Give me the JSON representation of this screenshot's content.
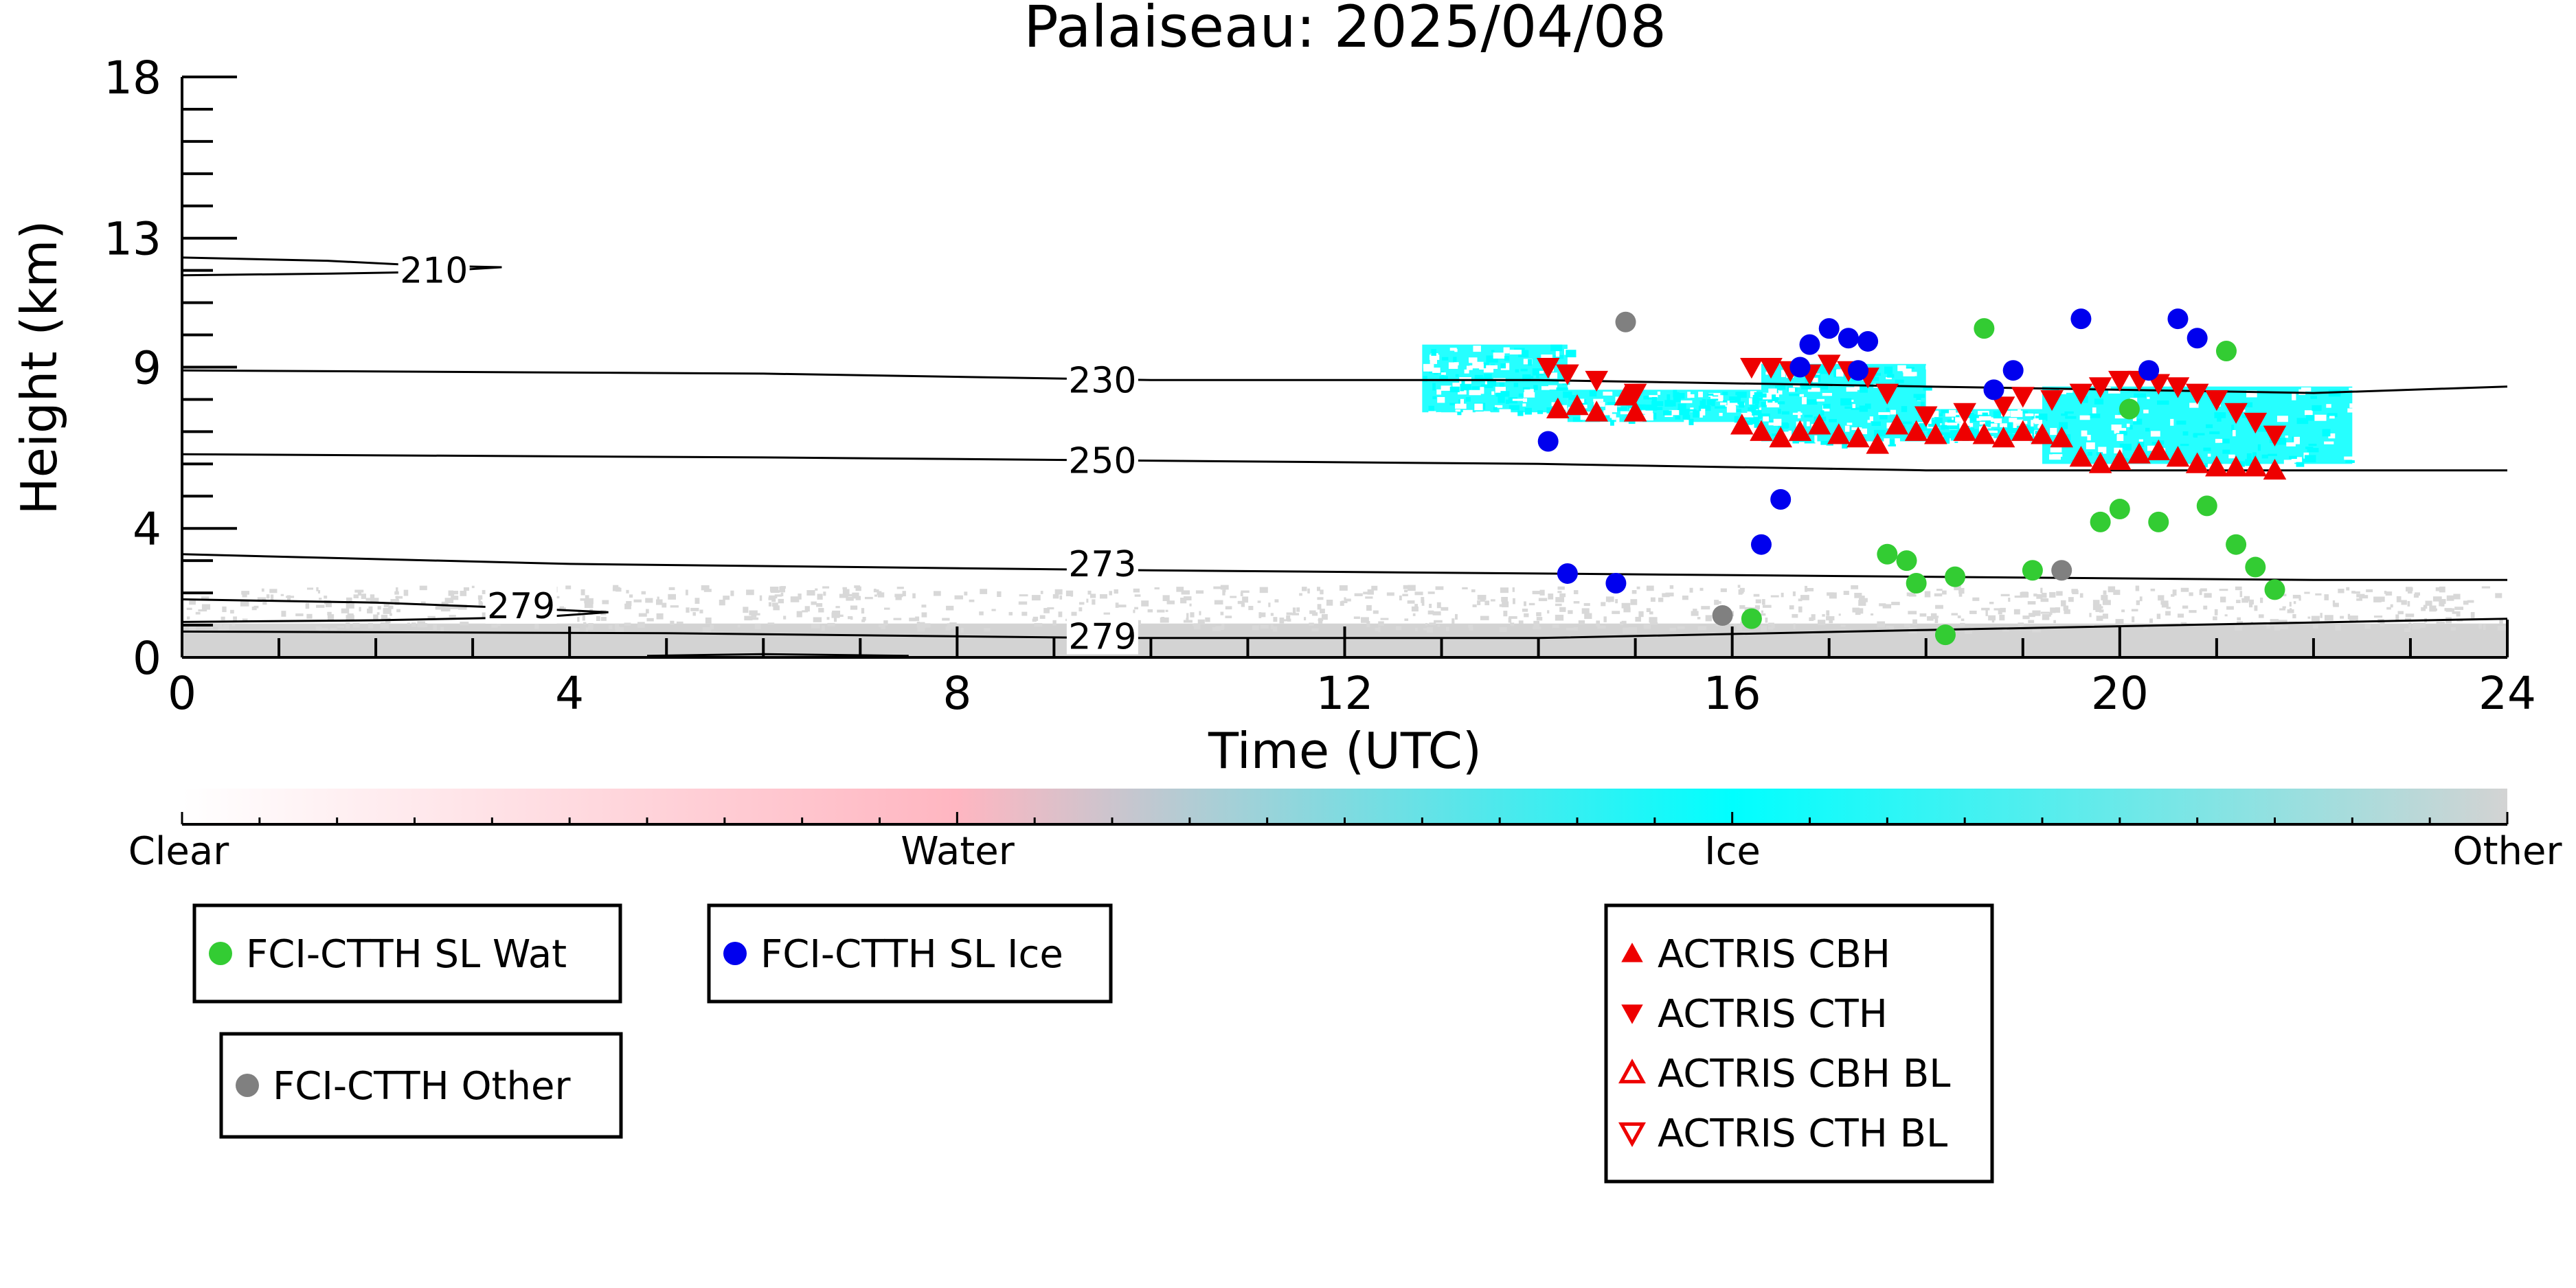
{
  "chart_data": {
    "type": "scatter",
    "title": "Palaiseau: 2025/04/08",
    "xlabel": "Time (UTC)",
    "ylabel": "Height (km)",
    "xlim": [
      0,
      24
    ],
    "ylim": [
      0,
      18
    ],
    "x_ticks": [
      "0",
      "4",
      "8",
      "12",
      "16",
      "20",
      "24"
    ],
    "y_ticks": [
      "0",
      "4",
      "9",
      "13",
      "18"
    ],
    "contours": [
      {
        "label": "210",
        "points": [
          [
            0,
            12.4
          ],
          [
            1.5,
            12.3
          ],
          [
            2.5,
            12.15
          ],
          [
            3.3,
            12.1
          ],
          [
            2.5,
            11.95
          ],
          [
            1.5,
            11.9
          ],
          [
            0,
            11.85
          ]
        ],
        "label_at": [
          2.6,
          12.0
        ]
      },
      {
        "label": "230",
        "points": [
          [
            0,
            8.9
          ],
          [
            6,
            8.8
          ],
          [
            10,
            8.6
          ],
          [
            14,
            8.6
          ],
          [
            18,
            8.4
          ],
          [
            22,
            8.2
          ],
          [
            24,
            8.4
          ]
        ],
        "label_at": [
          9.5,
          8.6
        ]
      },
      {
        "label": "250",
        "points": [
          [
            0,
            6.3
          ],
          [
            6,
            6.2
          ],
          [
            10,
            6.1
          ],
          [
            14,
            6.0
          ],
          [
            18,
            5.8
          ],
          [
            22,
            5.8
          ],
          [
            24,
            5.8
          ]
        ],
        "label_at": [
          9.5,
          6.1
        ]
      },
      {
        "label": "273",
        "points": [
          [
            0,
            3.2
          ],
          [
            4,
            2.9
          ],
          [
            10,
            2.7
          ],
          [
            14,
            2.6
          ],
          [
            18,
            2.5
          ],
          [
            22,
            2.4
          ],
          [
            24,
            2.4
          ]
        ],
        "label_at": [
          9.5,
          2.9
        ]
      },
      {
        "label": "279",
        "points": [
          [
            0,
            1.8
          ],
          [
            2,
            1.7
          ],
          [
            3.7,
            1.5
          ],
          [
            4.4,
            1.4
          ],
          [
            3.7,
            1.25
          ],
          [
            2,
            1.15
          ],
          [
            0,
            1.1
          ]
        ],
        "label_at": [
          3.5,
          1.6
        ]
      },
      {
        "label": "279",
        "points": [
          [
            0,
            0.8
          ],
          [
            5,
            0.75
          ],
          [
            9.6,
            0.6
          ],
          [
            14,
            0.6
          ],
          [
            18,
            0.85
          ],
          [
            24,
            1.2
          ]
        ],
        "label_at": [
          9.5,
          0.65
        ]
      },
      {
        "label": "",
        "points": [
          [
            4.8,
            0.05
          ],
          [
            6,
            0.1
          ],
          [
            7.5,
            0.05
          ]
        ],
        "label_at": null
      }
    ],
    "background_layers": {
      "other": {
        "x": [
          0,
          24
        ],
        "y_range": [
          0,
          1.5
        ]
      },
      "ice": [
        {
          "x": [
            12.8,
            14.3
          ],
          "y": [
            7.6,
            9.7
          ]
        },
        {
          "x": [
            14.3,
            16.3
          ],
          "y": [
            7.3,
            8.3
          ]
        },
        {
          "x": [
            16.3,
            18.0
          ],
          "y": [
            6.7,
            9.1
          ]
        },
        {
          "x": [
            18.0,
            19.2
          ],
          "y": [
            6.8,
            7.7
          ]
        },
        {
          "x": [
            19.2,
            22.4
          ],
          "y": [
            6.0,
            8.4
          ]
        }
      ]
    },
    "series": [
      {
        "name": "FCI-CTTH SL Wat",
        "color": "#33cc33",
        "marker": "circle",
        "points": [
          [
            16.2,
            1.2
          ],
          [
            17.6,
            3.2
          ],
          [
            17.8,
            3.0
          ],
          [
            17.9,
            2.3
          ],
          [
            18.2,
            0.7
          ],
          [
            18.3,
            2.5
          ],
          [
            18.6,
            10.2
          ],
          [
            19.1,
            2.7
          ],
          [
            19.8,
            4.2
          ],
          [
            20.0,
            4.6
          ],
          [
            20.1,
            7.7
          ],
          [
            20.4,
            4.2
          ],
          [
            20.9,
            4.7
          ],
          [
            21.1,
            9.5
          ],
          [
            21.2,
            3.5
          ],
          [
            21.4,
            2.8
          ],
          [
            21.6,
            2.1
          ]
        ]
      },
      {
        "name": "FCI-CTTH SL Ice",
        "color": "#0000ee",
        "marker": "circle",
        "points": [
          [
            14.1,
            6.7
          ],
          [
            14.3,
            2.6
          ],
          [
            14.8,
            2.3
          ],
          [
            16.3,
            3.5
          ],
          [
            16.5,
            4.9
          ],
          [
            16.7,
            9.0
          ],
          [
            16.8,
            9.7
          ],
          [
            17.0,
            10.2
          ],
          [
            17.2,
            9.9
          ],
          [
            17.3,
            8.9
          ],
          [
            17.4,
            9.8
          ],
          [
            18.7,
            8.3
          ],
          [
            18.9,
            8.9
          ],
          [
            19.6,
            10.5
          ],
          [
            20.3,
            8.9
          ],
          [
            20.6,
            10.5
          ],
          [
            20.8,
            9.9
          ]
        ]
      },
      {
        "name": "FCI-CTTH Other",
        "color": "#808080",
        "marker": "circle",
        "points": [
          [
            14.9,
            10.4
          ],
          [
            15.9,
            1.3
          ],
          [
            19.4,
            2.7
          ]
        ]
      },
      {
        "name": "ACTRIS CBH",
        "color": "#ee0000",
        "marker": "triangle-up",
        "points": [
          [
            14.2,
            7.7
          ],
          [
            14.4,
            7.8
          ],
          [
            14.6,
            7.6
          ],
          [
            14.9,
            8.1
          ],
          [
            15.0,
            7.6
          ],
          [
            16.1,
            7.2
          ],
          [
            16.3,
            7.0
          ],
          [
            16.5,
            6.8
          ],
          [
            16.7,
            7.0
          ],
          [
            16.9,
            7.2
          ],
          [
            17.1,
            6.9
          ],
          [
            17.3,
            6.8
          ],
          [
            17.5,
            6.6
          ],
          [
            17.7,
            7.2
          ],
          [
            17.9,
            7.0
          ],
          [
            18.1,
            6.9
          ],
          [
            18.4,
            7.0
          ],
          [
            18.6,
            6.9
          ],
          [
            18.8,
            6.8
          ],
          [
            19.0,
            7.0
          ],
          [
            19.2,
            6.9
          ],
          [
            19.4,
            6.8
          ],
          [
            19.6,
            6.2
          ],
          [
            19.8,
            6.0
          ],
          [
            20.0,
            6.1
          ],
          [
            20.2,
            6.3
          ],
          [
            20.4,
            6.4
          ],
          [
            20.6,
            6.2
          ],
          [
            20.8,
            6.0
          ],
          [
            21.0,
            5.9
          ],
          [
            21.2,
            5.9
          ],
          [
            21.4,
            5.9
          ],
          [
            21.6,
            5.8
          ]
        ]
      },
      {
        "name": "ACTRIS CTH",
        "color": "#ee0000",
        "marker": "triangle-down",
        "points": [
          [
            14.1,
            9.0
          ],
          [
            14.3,
            8.8
          ],
          [
            14.6,
            8.6
          ],
          [
            15.0,
            8.2
          ],
          [
            16.2,
            9.0
          ],
          [
            16.4,
            9.0
          ],
          [
            16.6,
            8.9
          ],
          [
            16.8,
            8.8
          ],
          [
            17.0,
            9.1
          ],
          [
            17.2,
            8.9
          ],
          [
            17.4,
            8.7
          ],
          [
            17.6,
            8.2
          ],
          [
            18.0,
            7.5
          ],
          [
            18.4,
            7.6
          ],
          [
            18.8,
            7.8
          ],
          [
            19.0,
            8.1
          ],
          [
            19.3,
            8.0
          ],
          [
            19.6,
            8.2
          ],
          [
            19.8,
            8.4
          ],
          [
            20.0,
            8.6
          ],
          [
            20.2,
            8.6
          ],
          [
            20.4,
            8.5
          ],
          [
            20.6,
            8.4
          ],
          [
            20.8,
            8.2
          ],
          [
            21.0,
            8.0
          ],
          [
            21.2,
            7.6
          ],
          [
            21.4,
            7.3
          ],
          [
            21.6,
            6.9
          ]
        ]
      },
      {
        "name": "ACTRIS CBH BL",
        "color": "#ee0000",
        "marker": "triangle-up-open",
        "points": []
      },
      {
        "name": "ACTRIS CTH BL",
        "color": "#ee0000",
        "marker": "triangle-down-open",
        "points": []
      }
    ],
    "colorbar": {
      "labels": [
        "Clear",
        "Water",
        "Ice",
        "Other"
      ],
      "colors": [
        "#ffffff",
        "#ffb6c1",
        "#00ffff",
        "#d3d3d3"
      ]
    },
    "legend_groups": [
      {
        "entries": [
          0
        ]
      },
      {
        "entries": [
          1
        ]
      },
      {
        "entries": [
          2
        ]
      },
      {
        "entries": [
          3,
          4,
          5,
          6
        ]
      }
    ]
  }
}
